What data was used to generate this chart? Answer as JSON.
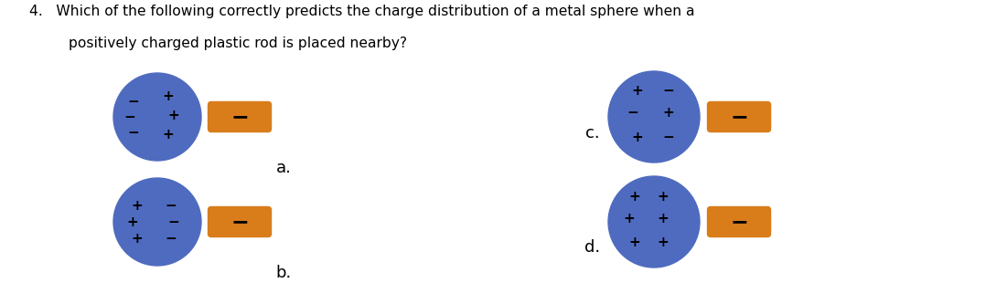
{
  "title_line1": "4.   Which of the following correctly predicts the charge distribution of a metal sphere when a",
  "title_line2": "positively charged plastic rod is placed nearby?",
  "background_color": "#ffffff",
  "sphere_color": "#4f6bbf",
  "rod_color": "#d97c1a",
  "label_a": "a.",
  "label_b": "b.",
  "label_c": "c.",
  "label_d": "d.",
  "figsize": [
    10.78,
    3.33
  ],
  "dpi": 100
}
